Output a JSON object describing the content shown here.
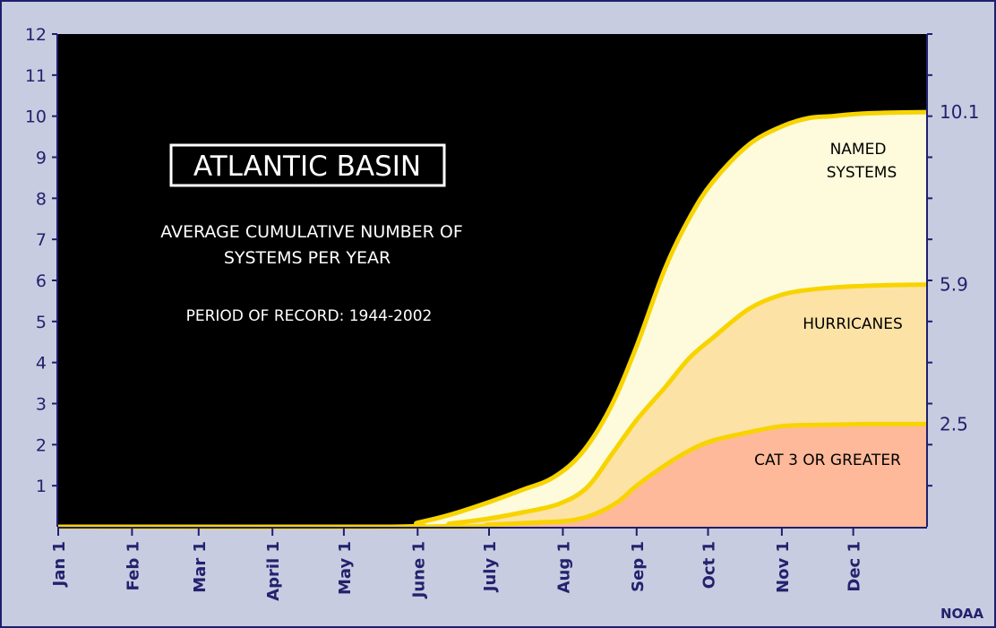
{
  "chart_data": {
    "type": "area",
    "title": "ATLANTIC BASIN",
    "subtitle_line1": "AVERAGE CUMULATIVE NUMBER OF",
    "subtitle_line2": "SYSTEMS PER YEAR",
    "period": "PERIOD OF RECORD: 1944-2002",
    "credit": "NOAA",
    "ylim": [
      0,
      12
    ],
    "yticks": [
      1,
      2,
      3,
      4,
      5,
      6,
      7,
      8,
      9,
      10,
      11,
      12
    ],
    "xlim": [
      0,
      365
    ],
    "xticks": [
      {
        "day": 0,
        "label": "Jan 1"
      },
      {
        "day": 31,
        "label": "Feb 1"
      },
      {
        "day": 59,
        "label": "Mar 1"
      },
      {
        "day": 90,
        "label": "April 1"
      },
      {
        "day": 120,
        "label": "May 1"
      },
      {
        "day": 151,
        "label": "June 1"
      },
      {
        "day": 181,
        "label": "July 1"
      },
      {
        "day": 212,
        "label": "Aug 1"
      },
      {
        "day": 243,
        "label": "Sep 1"
      },
      {
        "day": 273,
        "label": "Oct 1"
      },
      {
        "day": 304,
        "label": "Nov 1"
      },
      {
        "day": 334,
        "label": "Dec 1"
      }
    ],
    "right_labels": [
      "10.1",
      "5.9",
      "2.5"
    ],
    "series": [
      {
        "name": "NAMED SYSTEMS",
        "final_value": 10.1,
        "fill": "#fdfbdc",
        "x": [
          0,
          140,
          151,
          165,
          181,
          195,
          208,
          220,
          232,
          243,
          255,
          265,
          275,
          290,
          304,
          315,
          325,
          340,
          365
        ],
        "y": [
          0,
          0,
          0.1,
          0.3,
          0.6,
          0.9,
          1.2,
          1.8,
          2.9,
          4.4,
          6.3,
          7.5,
          8.4,
          9.3,
          9.75,
          9.95,
          10.0,
          10.07,
          10.1
        ]
      },
      {
        "name": "HURRICANES",
        "final_value": 5.9,
        "fill": "#fde2a6",
        "x": [
          0,
          150,
          165,
          181,
          195,
          210,
          222,
          233,
          243,
          255,
          265,
          275,
          290,
          304,
          320,
          340,
          365
        ],
        "y": [
          0,
          0,
          0.08,
          0.2,
          0.35,
          0.55,
          0.95,
          1.8,
          2.6,
          3.4,
          4.1,
          4.6,
          5.3,
          5.65,
          5.8,
          5.87,
          5.9
        ]
      },
      {
        "name": "CAT 3 OR GREATER",
        "final_value": 2.5,
        "fill": "#fdb99a",
        "x": [
          0,
          165,
          181,
          200,
          215,
          225,
          235,
          243,
          255,
          265,
          275,
          290,
          304,
          320,
          340,
          365
        ],
        "y": [
          0,
          0,
          0.05,
          0.1,
          0.15,
          0.3,
          0.6,
          1.0,
          1.5,
          1.85,
          2.1,
          2.3,
          2.45,
          2.48,
          2.5,
          2.5
        ]
      }
    ],
    "line_color": "#f7d400",
    "plot_background": "#000000",
    "frame_color": "#1f1f6e"
  }
}
